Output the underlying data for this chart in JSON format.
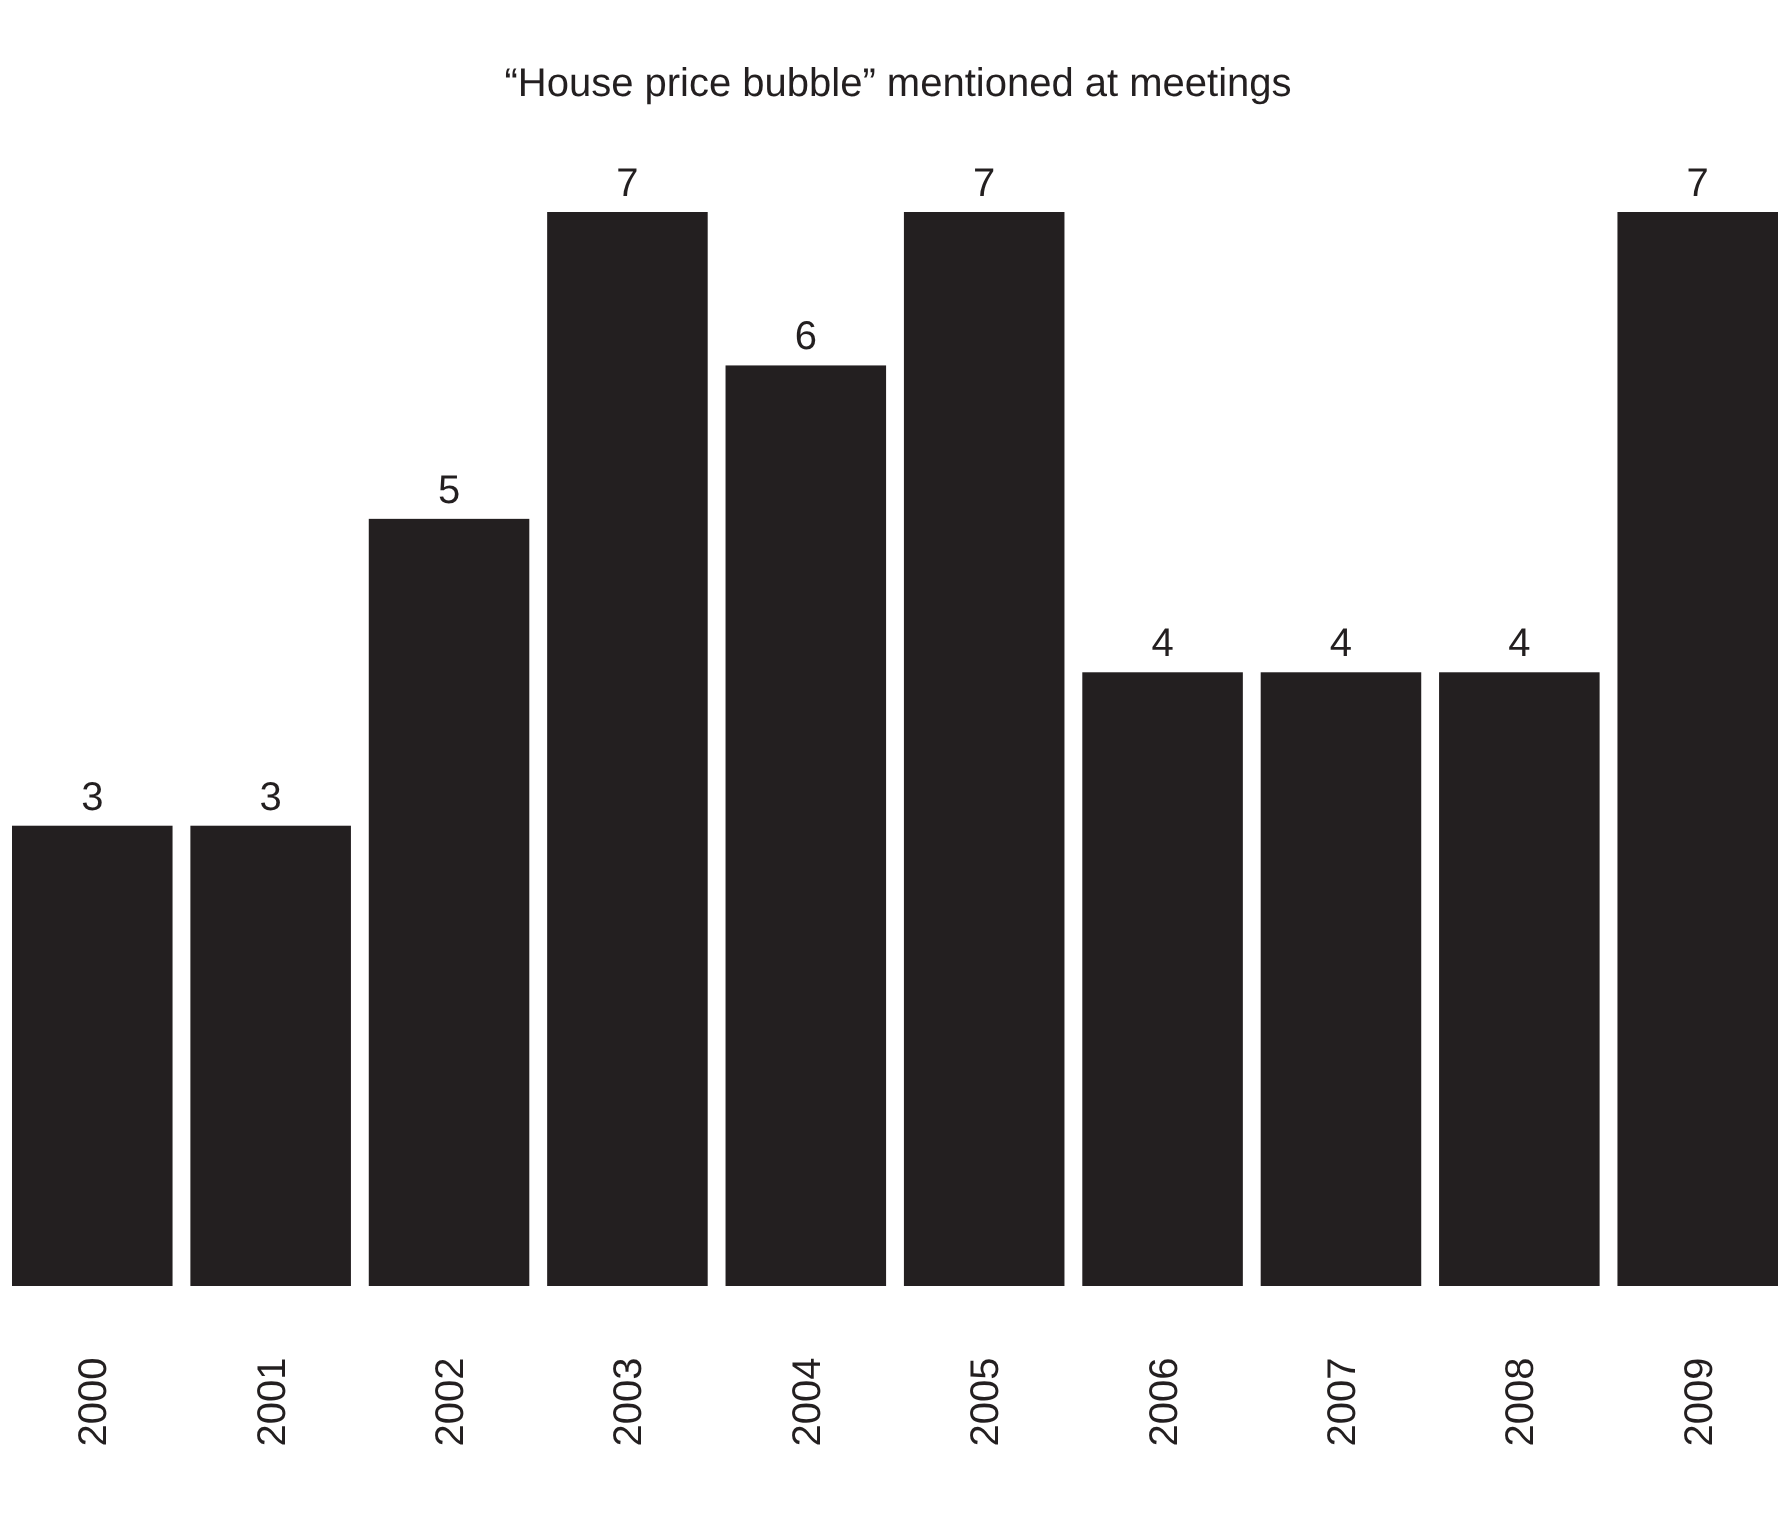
{
  "chart_data": {
    "type": "bar",
    "title": "“House price bubble” mentioned at meetings",
    "categories": [
      "2000",
      "2001",
      "2002",
      "2003",
      "2004",
      "2005",
      "2006",
      "2007",
      "2008",
      "2009"
    ],
    "values": [
      3,
      3,
      5,
      7,
      6,
      7,
      4,
      4,
      4,
      7
    ],
    "color": "#231f20",
    "data_labels": true
  }
}
